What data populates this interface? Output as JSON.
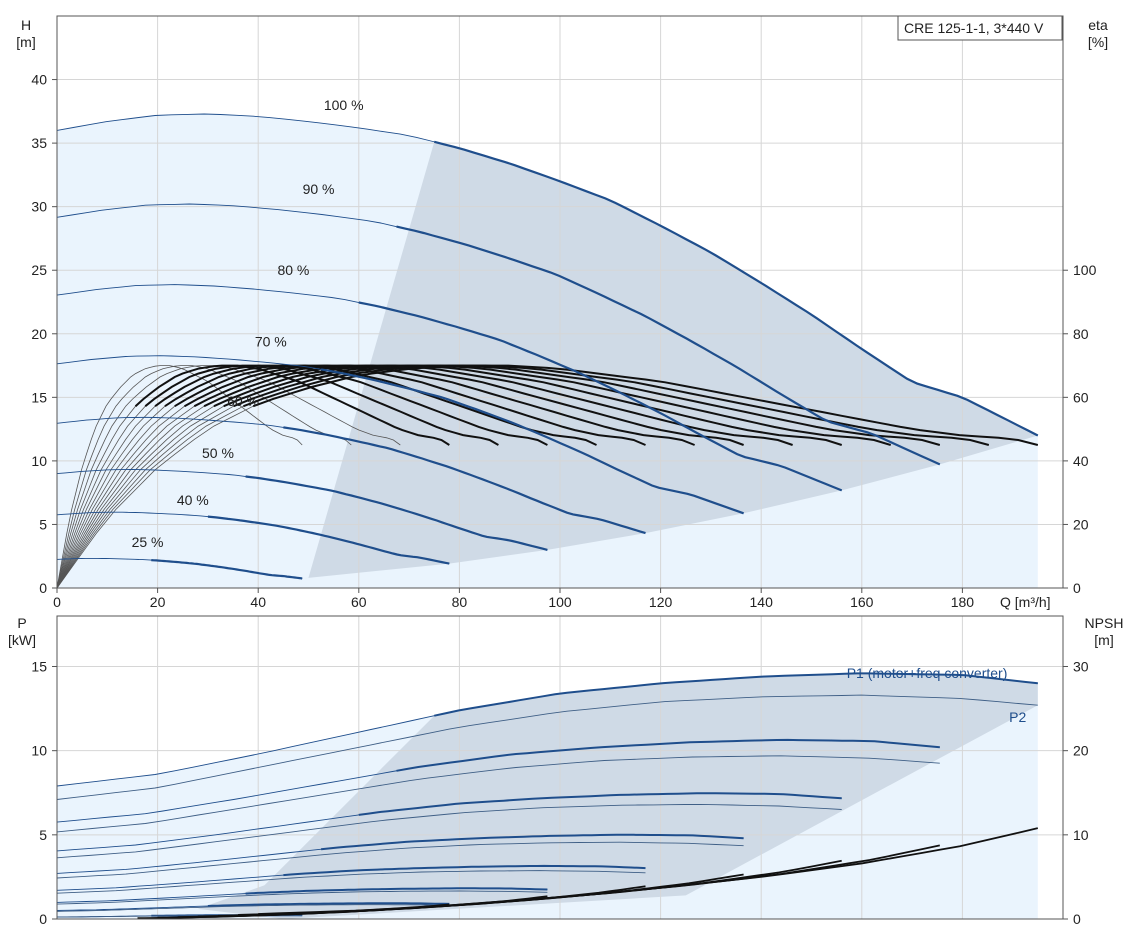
{
  "product_box": "CRE 125-1-1, 3*440 V",
  "colors": {
    "blue": "#1f4e8c",
    "region_light": "#eaf4fd",
    "region_dark": "#cfdae6",
    "grid": "#d6d6d6",
    "eta": "#111111",
    "eta_thin": "#555555"
  },
  "chart_data": [
    {
      "type": "line",
      "panel": "head",
      "ylabel_left": [
        "H",
        "[m]"
      ],
      "ylabel_right": [
        "eta",
        "[%]"
      ],
      "xlabel": "Q [m³/h]",
      "xlim": [
        0,
        200
      ],
      "xticks": [
        0,
        20,
        40,
        60,
        80,
        100,
        120,
        140,
        160,
        180
      ],
      "ylim_left": [
        0,
        45
      ],
      "yticks_left": [
        0,
        5,
        10,
        15,
        20,
        25,
        30,
        35,
        40
      ],
      "ylim_right": [
        0,
        180
      ],
      "yticks_right": [
        0,
        20,
        40,
        60,
        80,
        100
      ],
      "grid": true,
      "speed_curves": [
        {
          "label": "100 %",
          "speed": 1.0,
          "label_q": 57,
          "label_h": 37.3
        },
        {
          "label": "90 %",
          "speed": 0.9,
          "label_q": 52,
          "label_h": 30.7
        },
        {
          "label": "80 %",
          "speed": 0.8,
          "label_q": 47,
          "label_h": 24.3
        },
        {
          "label": "70 %",
          "speed": 0.7,
          "label_q": 42.5,
          "label_h": 18.7
        },
        {
          "label": "60 %",
          "speed": 0.6,
          "label_q": 37,
          "label_h": 14.0
        },
        {
          "label": "50 %",
          "speed": 0.5,
          "label_q": 32,
          "label_h": 9.9
        },
        {
          "label": "40 %",
          "speed": 0.4,
          "label_q": 27,
          "label_h": 6.2
        },
        {
          "label": "25 %",
          "speed": 0.25,
          "label_q": 18,
          "label_h": 2.9
        }
      ],
      "base_head_curve": {
        "q": [
          0,
          10,
          20,
          30,
          40,
          50,
          60,
          70,
          80,
          90,
          100,
          110,
          120,
          130,
          140,
          150,
          160,
          170,
          180,
          190,
          195
        ],
        "h": [
          36.0,
          36.7,
          37.2,
          37.3,
          37.1,
          36.7,
          36.2,
          35.6,
          34.6,
          33.4,
          32.0,
          30.5,
          28.5,
          26.4,
          24.0,
          21.5,
          18.8,
          16.2,
          15.0,
          13.0,
          12.0
        ]
      },
      "operating_region": {
        "q_min_100": 75,
        "h_min_25": 0.8,
        "q_min_25": 50
      },
      "efficiency_base": {
        "q": [
          0,
          10,
          20,
          30,
          40,
          50,
          60,
          70,
          80,
          90,
          100,
          110,
          120,
          130,
          140,
          150,
          160,
          170,
          180,
          190,
          195
        ],
        "eta": [
          0,
          22,
          38,
          50,
          58,
          63,
          67,
          69,
          70,
          70,
          69,
          67,
          65,
          62,
          59,
          56,
          53,
          50,
          48,
          47,
          45
        ]
      }
    },
    {
      "type": "line",
      "panel": "power",
      "ylabel_left": [
        "P",
        "[kW]"
      ],
      "ylabel_right": [
        "NPSH",
        "[m]"
      ],
      "xlim": [
        0,
        200
      ],
      "ylim_left": [
        0,
        18
      ],
      "yticks_left": [
        0,
        5,
        10,
        15
      ],
      "ylim_right": [
        0,
        36
      ],
      "yticks_right": [
        0,
        10,
        20,
        30
      ],
      "series": [
        {
          "name": "P1 (motor+freq converter)",
          "label_q": 157,
          "label_p": 14.6
        },
        {
          "name": "P2",
          "label_q": 191,
          "label_p": 12.0
        }
      ],
      "p1_base": {
        "q": [
          0,
          20,
          40,
          60,
          80,
          100,
          120,
          140,
          160,
          180,
          195
        ],
        "p": [
          7.9,
          8.6,
          9.8,
          11.1,
          12.4,
          13.4,
          14.0,
          14.4,
          14.6,
          14.5,
          14.0
        ]
      },
      "p2_base": {
        "q": [
          0,
          20,
          40,
          60,
          80,
          100,
          120,
          140,
          160,
          180,
          195
        ],
        "p": [
          7.1,
          7.8,
          9.0,
          10.2,
          11.4,
          12.3,
          12.9,
          13.2,
          13.3,
          13.1,
          12.7
        ]
      },
      "npsh": {
        "q": [
          40,
          60,
          80,
          100,
          120,
          140,
          160,
          180,
          195
        ],
        "npsh": [
          0.6,
          1.0,
          1.7,
          2.6,
          3.7,
          5.0,
          6.6,
          8.7,
          10.8
        ]
      }
    }
  ]
}
